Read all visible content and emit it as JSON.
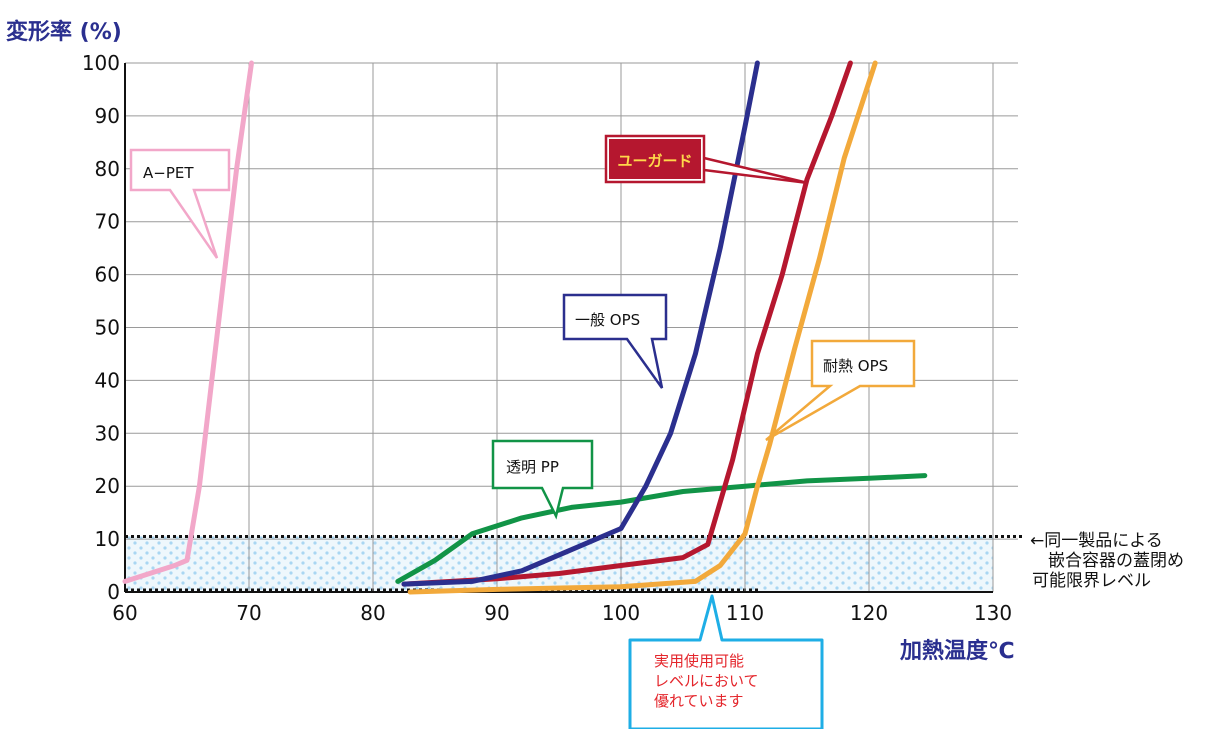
{
  "chart_data": {
    "type": "line",
    "ylabel": "変形率 (%)",
    "xlabel": "加熱温度℃",
    "xlim": [
      60,
      130
    ],
    "ylim": [
      0,
      100
    ],
    "xticks": [
      "60",
      "70",
      "80",
      "90",
      "100",
      "110",
      "120",
      "130"
    ],
    "yticks": [
      "0",
      "10",
      "20",
      "30",
      "40",
      "50",
      "60",
      "70",
      "80",
      "90",
      "100"
    ],
    "grid": true,
    "series": [
      {
        "name": "A−PET",
        "color": "#f2a7c9",
        "points": [
          [
            60,
            2
          ],
          [
            64,
            5
          ],
          [
            65,
            6
          ],
          [
            66,
            20
          ],
          [
            67,
            40
          ],
          [
            68,
            60
          ],
          [
            69,
            80
          ],
          [
            70.2,
            100
          ]
        ]
      },
      {
        "name": "一般 OPS",
        "color": "#2b2f8e",
        "points": [
          [
            82.5,
            1.5
          ],
          [
            88,
            2
          ],
          [
            92,
            4
          ],
          [
            96,
            8
          ],
          [
            100,
            12
          ],
          [
            102,
            20
          ],
          [
            104,
            30
          ],
          [
            106,
            45
          ],
          [
            108,
            65
          ],
          [
            110,
            88
          ],
          [
            111,
            100
          ]
        ]
      },
      {
        "name": "ユーガード",
        "color": "#b5172f",
        "points": [
          [
            82.5,
            1.5
          ],
          [
            90,
            2.5
          ],
          [
            95,
            3.5
          ],
          [
            100,
            5
          ],
          [
            105,
            6.5
          ],
          [
            107,
            9
          ],
          [
            109,
            25
          ],
          [
            111,
            45
          ],
          [
            113,
            60
          ],
          [
            115,
            78
          ],
          [
            117,
            90
          ],
          [
            118.5,
            100
          ]
        ]
      },
      {
        "name": "耐熱 OPS",
        "color": "#f2a93b",
        "points": [
          [
            83,
            0
          ],
          [
            90,
            0.5
          ],
          [
            100,
            1
          ],
          [
            106,
            2
          ],
          [
            108,
            5
          ],
          [
            110,
            11
          ],
          [
            111,
            20
          ],
          [
            112,
            28
          ],
          [
            114,
            46
          ],
          [
            116,
            63
          ],
          [
            118,
            82
          ],
          [
            120.5,
            100
          ]
        ]
      },
      {
        "name": "透明 PP",
        "color": "#119447",
        "points": [
          [
            82,
            2
          ],
          [
            85,
            6
          ],
          [
            88,
            11
          ],
          [
            92,
            14
          ],
          [
            96,
            16
          ],
          [
            100,
            17
          ],
          [
            105,
            19
          ],
          [
            110,
            20
          ],
          [
            115,
            21
          ],
          [
            120,
            21.5
          ],
          [
            124.5,
            22
          ]
        ]
      }
    ],
    "threshold_band": {
      "from": 0,
      "to": 10.5
    },
    "labels": {
      "apet": "A−PET",
      "ops": "一般 OPS",
      "yugard": "ユーガード",
      "heat_ops": "耐熱 OPS",
      "pp": "透明 PP"
    }
  },
  "note": {
    "line1": "←同一製品による",
    "line2": "嵌合容器の蓋閉め",
    "line3": "可能限界レベル"
  },
  "callout_bottom": {
    "line1": "実用使用可能",
    "line2": "レベルにおいて",
    "line3": "優れています"
  },
  "colors": {
    "axis_text": "#2a2f8f",
    "callout_bottom_border": "#1eaee6",
    "callout_bottom_text": "#e4262c",
    "band": "#cfe9f7"
  }
}
